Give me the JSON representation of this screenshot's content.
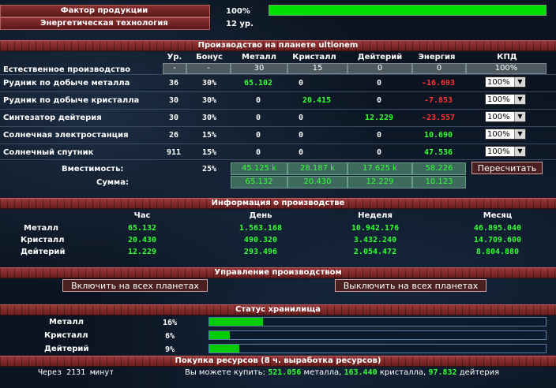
{
  "factor": {
    "label": "Фактор продукции",
    "value": "100%",
    "fill_percent": 100
  },
  "energy_tech": {
    "label": "Энергетическая технология",
    "value": "12 ур."
  },
  "production": {
    "title": "Производство на планете ultionem",
    "headers": [
      "Ур.",
      "Бонус",
      "Металл",
      "Кристалл",
      "Дейтерий",
      "Энергия",
      "КПД"
    ],
    "natural": {
      "label": "Естественное производство",
      "level": "-",
      "bonus": "-",
      "metal": "30",
      "crystal": "15",
      "deut": "0",
      "energy": "0",
      "kpd": "100%"
    },
    "rows": [
      {
        "label": "Рудник по добыче металла",
        "level": "36",
        "bonus": "30%",
        "metal": "65.102",
        "crystal": "0",
        "deut": "0",
        "energy": "-16.693",
        "kpd": "100%"
      },
      {
        "label": "Рудник по добыче кристалла",
        "level": "30",
        "bonus": "30%",
        "metal": "0",
        "crystal": "20.415",
        "deut": "0",
        "energy": "-7.853",
        "kpd": "100%"
      },
      {
        "label": "Синтезатор дейтерия",
        "level": "30",
        "bonus": "30%",
        "metal": "0",
        "crystal": "0",
        "deut": "12.229",
        "energy": "-23.557",
        "kpd": "100%"
      },
      {
        "label": "Солнечная электростанция",
        "level": "26",
        "bonus": "15%",
        "metal": "0",
        "crystal": "0",
        "deut": "0",
        "energy": "10.690",
        "kpd": "100%"
      },
      {
        "label": "Солнечный спутник",
        "level": "911",
        "bonus": "15%",
        "metal": "0",
        "crystal": "0",
        "deut": "0",
        "energy": "47.536",
        "kpd": "100%"
      }
    ],
    "capacity": {
      "label": "Вместимость:",
      "bonus": "25%",
      "metal": "45.125 k",
      "crystal": "28.187 k",
      "deut": "17.625 k",
      "energy": "58.226"
    },
    "recalc_label": "Пересчитать",
    "sum": {
      "label": "Сумма:",
      "metal": "65.132",
      "crystal": "20.430",
      "deut": "12.229",
      "energy": "10.123"
    }
  },
  "info": {
    "title": "Информация о производстве",
    "headers": [
      "Час",
      "День",
      "Неделя",
      "Месяц"
    ],
    "rows": [
      {
        "label": "Металл",
        "hour": "65.132",
        "day": "1.563.168",
        "week": "10.942.176",
        "month": "46.895.040"
      },
      {
        "label": "Кристалл",
        "hour": "20.430",
        "day": "490.320",
        "week": "3.432.240",
        "month": "14.709.600"
      },
      {
        "label": "Дейтерий",
        "hour": "12.229",
        "day": "293.496",
        "week": "2.054.472",
        "month": "8.804.880"
      }
    ]
  },
  "control": {
    "title": "Управление производством",
    "enable_all": "Включить на всех планетах",
    "disable_all": "Выключить на всех планетах"
  },
  "storage": {
    "title": "Статус хранилища",
    "rows": [
      {
        "label": "Металл",
        "percent": "16%",
        "fill": 16
      },
      {
        "label": "Кристалл",
        "percent": "6%",
        "fill": 6
      },
      {
        "label": "Дейтерий",
        "percent": "9%",
        "fill": 9
      }
    ]
  },
  "purchase": {
    "title": "Покупка ресурсов (8 ч. выработка ресурсов)",
    "timer": "Через 2131 минут",
    "buy_prefix": "Вы можете купить:",
    "metal_amount": "521.056",
    "metal_word": "металла,",
    "crystal_amount": "163.440",
    "crystal_word": "кристалла,",
    "deut_amount": "97.832",
    "deut_word": "дейтерия"
  }
}
